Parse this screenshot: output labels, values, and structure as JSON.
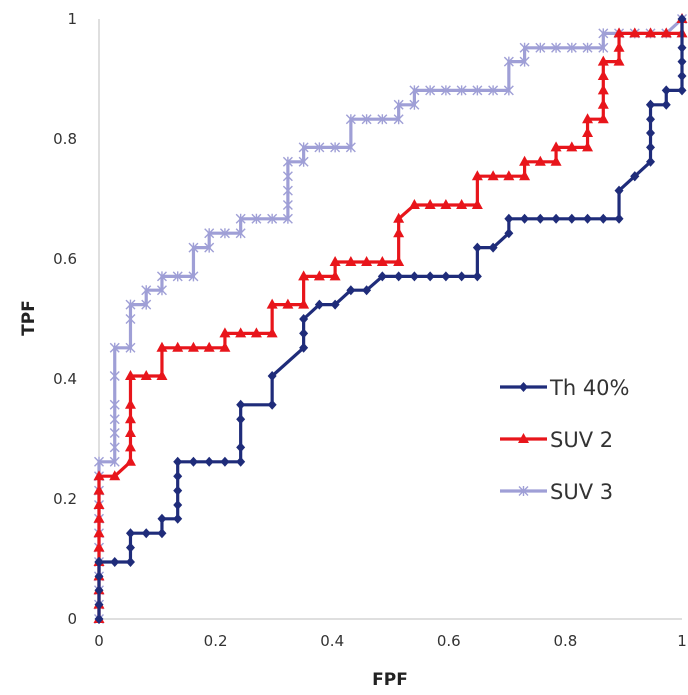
{
  "chart_data": {
    "type": "line",
    "title": "",
    "xlabel": "FPF",
    "ylabel": "TPF",
    "xlim": [
      0,
      1
    ],
    "ylim": [
      0,
      1
    ],
    "x_ticks": [
      "0",
      "0.2",
      "0.4",
      "0.6",
      "0.8",
      "1"
    ],
    "y_ticks": [
      "0",
      "0.2",
      "0.4",
      "0.6",
      "0.8",
      "1"
    ],
    "grid": false,
    "legend_position": "right",
    "series": [
      {
        "name": "Th 40%",
        "color": "#1f2c7a",
        "marker": "diamond",
        "x": [
          0,
          0,
          0,
          0,
          0,
          0,
          0,
          0,
          0,
          0.027,
          0.054,
          0.054,
          0.054,
          0.081,
          0.108,
          0.108,
          0.135,
          0.135,
          0.135,
          0.135,
          0.135,
          0.162,
          0.189,
          0.216,
          0.243,
          0.243,
          0.243,
          0.243,
          0.297,
          0.297,
          0.351,
          0.351,
          0.351,
          0.378,
          0.405,
          0.432,
          0.459,
          0.486,
          0.514,
          0.541,
          0.568,
          0.595,
          0.622,
          0.649,
          0.649,
          0.676,
          0.703,
          0.703,
          0.73,
          0.757,
          0.784,
          0.811,
          0.838,
          0.865,
          0.892,
          0.892,
          0.919,
          0.919,
          0.946,
          0.946,
          0.946,
          0.946,
          0.946,
          0.946,
          0.973,
          0.973,
          1,
          1,
          1,
          1,
          1
        ],
        "y": [
          0,
          0.024,
          0.048,
          0.071,
          0.095,
          0.095,
          0.095,
          0.095,
          0.095,
          0.095,
          0.095,
          0.119,
          0.143,
          0.143,
          0.143,
          0.167,
          0.167,
          0.19,
          0.214,
          0.238,
          0.262,
          0.262,
          0.262,
          0.262,
          0.262,
          0.286,
          0.333,
          0.357,
          0.357,
          0.405,
          0.452,
          0.476,
          0.5,
          0.524,
          0.524,
          0.548,
          0.548,
          0.571,
          0.571,
          0.571,
          0.571,
          0.571,
          0.571,
          0.571,
          0.619,
          0.619,
          0.643,
          0.667,
          0.667,
          0.667,
          0.667,
          0.667,
          0.667,
          0.667,
          0.667,
          0.714,
          0.738,
          0.738,
          0.762,
          0.786,
          0.81,
          0.833,
          0.857,
          0.857,
          0.857,
          0.881,
          0.881,
          0.905,
          0.929,
          0.952,
          1
        ]
      },
      {
        "name": "SUV 2",
        "color": "#e8151b",
        "marker": "triangle",
        "x": [
          0,
          0,
          0,
          0,
          0,
          0,
          0,
          0,
          0,
          0,
          0,
          0.027,
          0.054,
          0.054,
          0.054,
          0.054,
          0.054,
          0.054,
          0.081,
          0.108,
          0.108,
          0.135,
          0.162,
          0.189,
          0.216,
          0.216,
          0.243,
          0.27,
          0.297,
          0.297,
          0.324,
          0.351,
          0.351,
          0.378,
          0.405,
          0.405,
          0.432,
          0.459,
          0.486,
          0.514,
          0.514,
          0.514,
          0.541,
          0.568,
          0.595,
          0.622,
          0.649,
          0.649,
          0.676,
          0.703,
          0.73,
          0.73,
          0.757,
          0.784,
          0.784,
          0.811,
          0.838,
          0.838,
          0.838,
          0.865,
          0.865,
          0.865,
          0.865,
          0.865,
          0.892,
          0.892,
          0.892,
          0.919,
          0.946,
          0.973,
          1,
          1
        ],
        "y": [
          0,
          0.024,
          0.048,
          0.071,
          0.095,
          0.119,
          0.143,
          0.167,
          0.19,
          0.214,
          0.238,
          0.238,
          0.262,
          0.286,
          0.31,
          0.333,
          0.357,
          0.405,
          0.405,
          0.405,
          0.452,
          0.452,
          0.452,
          0.452,
          0.452,
          0.476,
          0.476,
          0.476,
          0.476,
          0.524,
          0.524,
          0.524,
          0.571,
          0.571,
          0.571,
          0.595,
          0.595,
          0.595,
          0.595,
          0.595,
          0.643,
          0.667,
          0.69,
          0.69,
          0.69,
          0.69,
          0.69,
          0.738,
          0.738,
          0.738,
          0.738,
          0.762,
          0.762,
          0.762,
          0.786,
          0.786,
          0.786,
          0.81,
          0.833,
          0.833,
          0.857,
          0.881,
          0.905,
          0.929,
          0.929,
          0.952,
          0.976,
          0.976,
          0.976,
          0.976,
          0.976,
          1
        ]
      },
      {
        "name": "SUV 3",
        "color": "#9f9fd6",
        "marker": "star",
        "x": [
          0,
          0,
          0,
          0,
          0,
          0,
          0,
          0,
          0,
          0,
          0,
          0,
          0.027,
          0.027,
          0.027,
          0.027,
          0.027,
          0.027,
          0.027,
          0.054,
          0.054,
          0.054,
          0.081,
          0.081,
          0.108,
          0.108,
          0.135,
          0.162,
          0.162,
          0.189,
          0.189,
          0.216,
          0.243,
          0.243,
          0.27,
          0.297,
          0.324,
          0.324,
          0.324,
          0.324,
          0.324,
          0.351,
          0.351,
          0.378,
          0.405,
          0.432,
          0.432,
          0.459,
          0.486,
          0.514,
          0.514,
          0.541,
          0.541,
          0.568,
          0.595,
          0.622,
          0.649,
          0.676,
          0.703,
          0.703,
          0.73,
          0.73,
          0.757,
          0.784,
          0.811,
          0.838,
          0.865,
          0.865,
          0.892,
          0.919,
          0.946,
          0.973,
          1
        ],
        "y": [
          0,
          0.024,
          0.048,
          0.071,
          0.095,
          0.119,
          0.143,
          0.167,
          0.19,
          0.214,
          0.238,
          0.262,
          0.262,
          0.286,
          0.31,
          0.333,
          0.357,
          0.405,
          0.452,
          0.452,
          0.5,
          0.524,
          0.524,
          0.548,
          0.548,
          0.571,
          0.571,
          0.571,
          0.619,
          0.619,
          0.643,
          0.643,
          0.643,
          0.667,
          0.667,
          0.667,
          0.667,
          0.69,
          0.714,
          0.738,
          0.762,
          0.762,
          0.786,
          0.786,
          0.786,
          0.786,
          0.833,
          0.833,
          0.833,
          0.833,
          0.857,
          0.857,
          0.881,
          0.881,
          0.881,
          0.881,
          0.881,
          0.881,
          0.881,
          0.929,
          0.929,
          0.952,
          0.952,
          0.952,
          0.952,
          0.952,
          0.952,
          0.976,
          0.976,
          0.976,
          0.976,
          0.976,
          1
        ]
      }
    ]
  }
}
